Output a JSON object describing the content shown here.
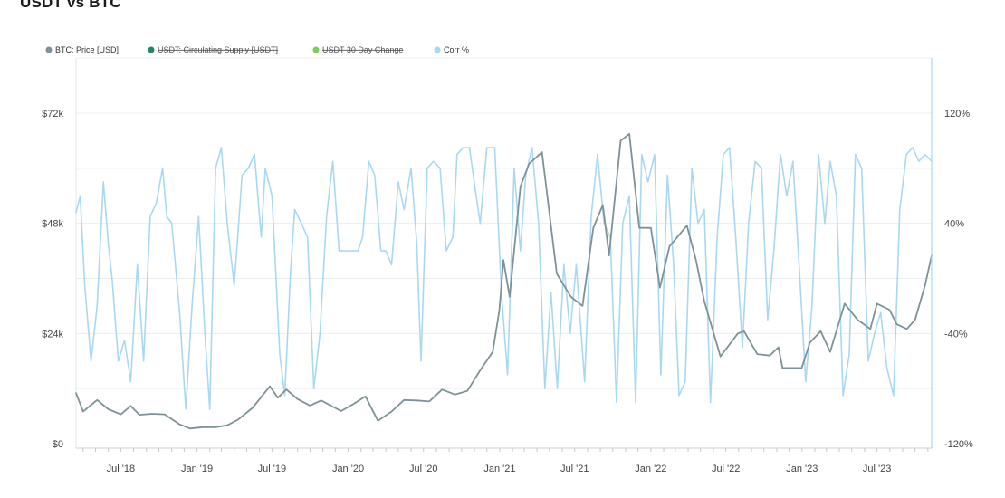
{
  "page": {
    "title": "USDT vs BTC"
  },
  "legend": [
    {
      "label": "BTC: Price [USD]",
      "color": "#7f9297",
      "active": true
    },
    {
      "label": "USDT: Circulating Supply [USDT]",
      "color": "#1f8a5f",
      "active": false
    },
    {
      "label": "USDT 30 Day Change",
      "color": "#7ccf55",
      "active": false
    },
    {
      "label": "Corr %",
      "color": "#a9d8f2",
      "active": true
    }
  ],
  "chart_data": {
    "type": "line",
    "title": "USDT vs BTC",
    "x_range": [
      "2018-03-15",
      "2023-11-10"
    ],
    "x_ticks": [
      "Jul '18",
      "Jan '19",
      "Jul '19",
      "Jan '20",
      "Jul '20",
      "Jan '21",
      "Jul '21",
      "Jan '22",
      "Jul '22",
      "Jan '23",
      "Jul '23"
    ],
    "y_left": {
      "label": "",
      "range": [
        0,
        72000
      ],
      "ticks": [
        "$0",
        "$24k",
        "$48k",
        "$72k"
      ]
    },
    "y_right": {
      "label": "",
      "range": [
        -120,
        120
      ],
      "unit": "%",
      "ticks": [
        "-120%",
        "-40%",
        "40%",
        "120%"
      ]
    },
    "grid": true,
    "legend_position": "top-left",
    "series": [
      {
        "name": "BTC: Price [USD]",
        "axis": "left",
        "color": "#7f9297",
        "points": [
          [
            "2018-03-15",
            11000
          ],
          [
            "2018-04-01",
            7000
          ],
          [
            "2018-05-05",
            9500
          ],
          [
            "2018-06-01",
            7500
          ],
          [
            "2018-07-01",
            6400
          ],
          [
            "2018-07-25",
            8200
          ],
          [
            "2018-08-15",
            6300
          ],
          [
            "2018-09-15",
            6500
          ],
          [
            "2018-10-15",
            6400
          ],
          [
            "2018-11-20",
            4200
          ],
          [
            "2018-12-15",
            3300
          ],
          [
            "2019-01-15",
            3600
          ],
          [
            "2019-02-15",
            3600
          ],
          [
            "2019-03-15",
            4000
          ],
          [
            "2019-04-10",
            5200
          ],
          [
            "2019-05-15",
            7800
          ],
          [
            "2019-06-26",
            12500
          ],
          [
            "2019-07-15",
            10000
          ],
          [
            "2019-08-05",
            11800
          ],
          [
            "2019-09-01",
            9700
          ],
          [
            "2019-10-01",
            8300
          ],
          [
            "2019-10-28",
            9400
          ],
          [
            "2019-12-15",
            7100
          ],
          [
            "2020-01-15",
            8700
          ],
          [
            "2020-02-12",
            10300
          ],
          [
            "2020-03-13",
            5000
          ],
          [
            "2020-04-15",
            7000
          ],
          [
            "2020-05-15",
            9500
          ],
          [
            "2020-06-15",
            9400
          ],
          [
            "2020-07-15",
            9200
          ],
          [
            "2020-08-15",
            11800
          ],
          [
            "2020-09-15",
            10700
          ],
          [
            "2020-10-15",
            11500
          ],
          [
            "2020-11-15",
            16000
          ],
          [
            "2020-12-15",
            20000
          ],
          [
            "2020-12-31",
            29000
          ],
          [
            "2021-01-10",
            40000
          ],
          [
            "2021-01-25",
            32000
          ],
          [
            "2021-02-20",
            56000
          ],
          [
            "2021-03-13",
            61000
          ],
          [
            "2021-04-13",
            63500
          ],
          [
            "2021-05-19",
            37000
          ],
          [
            "2021-06-22",
            32000
          ],
          [
            "2021-07-20",
            30000
          ],
          [
            "2021-08-15",
            47000
          ],
          [
            "2021-09-07",
            52000
          ],
          [
            "2021-09-22",
            41000
          ],
          [
            "2021-10-20",
            66000
          ],
          [
            "2021-11-10",
            67500
          ],
          [
            "2021-12-04",
            47000
          ],
          [
            "2022-01-01",
            47000
          ],
          [
            "2022-01-23",
            34000
          ],
          [
            "2022-02-15",
            43000
          ],
          [
            "2022-03-29",
            47500
          ],
          [
            "2022-04-20",
            40000
          ],
          [
            "2022-05-10",
            31000
          ],
          [
            "2022-06-18",
            19000
          ],
          [
            "2022-07-30",
            24000
          ],
          [
            "2022-08-14",
            24500
          ],
          [
            "2022-09-15",
            19500
          ],
          [
            "2022-10-15",
            19200
          ],
          [
            "2022-11-05",
            21000
          ],
          [
            "2022-11-15",
            16500
          ],
          [
            "2022-12-31",
            16500
          ],
          [
            "2023-01-20",
            22000
          ],
          [
            "2023-02-15",
            24500
          ],
          [
            "2023-03-10",
            20000
          ],
          [
            "2023-04-14",
            30500
          ],
          [
            "2023-05-15",
            27000
          ],
          [
            "2023-06-15",
            25000
          ],
          [
            "2023-07-01",
            30500
          ],
          [
            "2023-07-31",
            29200
          ],
          [
            "2023-08-18",
            26000
          ],
          [
            "2023-09-11",
            25000
          ],
          [
            "2023-10-01",
            27000
          ],
          [
            "2023-10-25",
            34500
          ],
          [
            "2023-11-10",
            41000
          ]
        ]
      },
      {
        "name": "Corr %",
        "axis": "right",
        "color": "#a9d8f2",
        "points": [
          [
            "2018-03-15",
            48
          ],
          [
            "2018-03-25",
            60
          ],
          [
            "2018-04-05",
            -5
          ],
          [
            "2018-04-20",
            -60
          ],
          [
            "2018-05-05",
            -20
          ],
          [
            "2018-05-20",
            70
          ],
          [
            "2018-06-01",
            25
          ],
          [
            "2018-06-10",
            0
          ],
          [
            "2018-06-25",
            -60
          ],
          [
            "2018-07-10",
            -45
          ],
          [
            "2018-07-25",
            -75
          ],
          [
            "2018-08-10",
            10
          ],
          [
            "2018-08-25",
            -60
          ],
          [
            "2018-09-10",
            45
          ],
          [
            "2018-09-25",
            55
          ],
          [
            "2018-10-10",
            80
          ],
          [
            "2018-10-20",
            45
          ],
          [
            "2018-11-01",
            40
          ],
          [
            "2018-11-20",
            -25
          ],
          [
            "2018-12-05",
            -95
          ],
          [
            "2018-12-20",
            -20
          ],
          [
            "2019-01-05",
            45
          ],
          [
            "2019-01-20",
            -40
          ],
          [
            "2019-02-01",
            -95
          ],
          [
            "2019-02-15",
            80
          ],
          [
            "2019-03-01",
            95
          ],
          [
            "2019-03-15",
            40
          ],
          [
            "2019-04-01",
            -5
          ],
          [
            "2019-04-20",
            75
          ],
          [
            "2019-05-05",
            80
          ],
          [
            "2019-05-20",
            90
          ],
          [
            "2019-06-05",
            30
          ],
          [
            "2019-06-15",
            80
          ],
          [
            "2019-07-01",
            60
          ],
          [
            "2019-07-20",
            -55
          ],
          [
            "2019-08-01",
            -85
          ],
          [
            "2019-08-15",
            5
          ],
          [
            "2019-08-25",
            50
          ],
          [
            "2019-09-10",
            40
          ],
          [
            "2019-09-25",
            30
          ],
          [
            "2019-10-10",
            -80
          ],
          [
            "2019-10-25",
            -40
          ],
          [
            "2019-11-10",
            45
          ],
          [
            "2019-11-25",
            85
          ],
          [
            "2019-12-10",
            20
          ],
          [
            "2019-12-25",
            20
          ],
          [
            "2020-01-10",
            20
          ],
          [
            "2020-01-25",
            20
          ],
          [
            "2020-02-05",
            30
          ],
          [
            "2020-02-20",
            85
          ],
          [
            "2020-03-05",
            75
          ],
          [
            "2020-03-20",
            20
          ],
          [
            "2020-04-01",
            20
          ],
          [
            "2020-04-15",
            10
          ],
          [
            "2020-05-01",
            70
          ],
          [
            "2020-05-15",
            50
          ],
          [
            "2020-06-01",
            80
          ],
          [
            "2020-06-15",
            25
          ],
          [
            "2020-06-25",
            -60
          ],
          [
            "2020-07-10",
            80
          ],
          [
            "2020-07-25",
            85
          ],
          [
            "2020-08-10",
            80
          ],
          [
            "2020-08-25",
            20
          ],
          [
            "2020-09-10",
            30
          ],
          [
            "2020-09-20",
            90
          ],
          [
            "2020-10-05",
            95
          ],
          [
            "2020-10-20",
            95
          ],
          [
            "2020-11-05",
            60
          ],
          [
            "2020-11-15",
            40
          ],
          [
            "2020-12-01",
            95
          ],
          [
            "2020-12-20",
            95
          ],
          [
            "2021-01-05",
            -10
          ],
          [
            "2021-01-20",
            -70
          ],
          [
            "2021-02-05",
            80
          ],
          [
            "2021-02-20",
            20
          ],
          [
            "2021-03-05",
            75
          ],
          [
            "2021-03-20",
            95
          ],
          [
            "2021-04-05",
            40
          ],
          [
            "2021-04-20",
            -80
          ],
          [
            "2021-05-05",
            -10
          ],
          [
            "2021-05-20",
            -80
          ],
          [
            "2021-06-05",
            10
          ],
          [
            "2021-06-20",
            -40
          ],
          [
            "2021-07-05",
            10
          ],
          [
            "2021-07-25",
            -75
          ],
          [
            "2021-08-10",
            45
          ],
          [
            "2021-08-25",
            90
          ],
          [
            "2021-09-10",
            40
          ],
          [
            "2021-09-25",
            30
          ],
          [
            "2021-10-10",
            -90
          ],
          [
            "2021-10-25",
            40
          ],
          [
            "2021-11-10",
            60
          ],
          [
            "2021-11-25",
            -90
          ],
          [
            "2021-12-10",
            90
          ],
          [
            "2021-12-25",
            70
          ],
          [
            "2022-01-10",
            90
          ],
          [
            "2022-01-25",
            -70
          ],
          [
            "2022-02-10",
            75
          ],
          [
            "2022-02-25",
            10
          ],
          [
            "2022-03-10",
            -85
          ],
          [
            "2022-03-25",
            -75
          ],
          [
            "2022-04-10",
            80
          ],
          [
            "2022-04-25",
            40
          ],
          [
            "2022-05-10",
            50
          ],
          [
            "2022-05-25",
            -90
          ],
          [
            "2022-06-10",
            30
          ],
          [
            "2022-06-25",
            90
          ],
          [
            "2022-07-10",
            95
          ],
          [
            "2022-07-25",
            30
          ],
          [
            "2022-08-10",
            -50
          ],
          [
            "2022-08-25",
            40
          ],
          [
            "2022-09-10",
            85
          ],
          [
            "2022-09-25",
            80
          ],
          [
            "2022-10-10",
            -30
          ],
          [
            "2022-10-25",
            20
          ],
          [
            "2022-11-10",
            90
          ],
          [
            "2022-11-25",
            60
          ],
          [
            "2022-12-10",
            85
          ],
          [
            "2022-12-25",
            10
          ],
          [
            "2023-01-10",
            -75
          ],
          [
            "2023-01-25",
            -20
          ],
          [
            "2023-02-10",
            90
          ],
          [
            "2023-02-25",
            40
          ],
          [
            "2023-03-10",
            85
          ],
          [
            "2023-03-25",
            60
          ],
          [
            "2023-04-10",
            -85
          ],
          [
            "2023-04-25",
            -55
          ],
          [
            "2023-05-10",
            90
          ],
          [
            "2023-05-25",
            80
          ],
          [
            "2023-06-10",
            -60
          ],
          [
            "2023-06-25",
            -40
          ],
          [
            "2023-07-10",
            -25
          ],
          [
            "2023-07-25",
            -65
          ],
          [
            "2023-08-10",
            -85
          ],
          [
            "2023-08-25",
            50
          ],
          [
            "2023-09-10",
            90
          ],
          [
            "2023-09-25",
            95
          ],
          [
            "2023-10-10",
            85
          ],
          [
            "2023-10-25",
            90
          ],
          [
            "2023-11-10",
            85
          ]
        ]
      }
    ]
  }
}
